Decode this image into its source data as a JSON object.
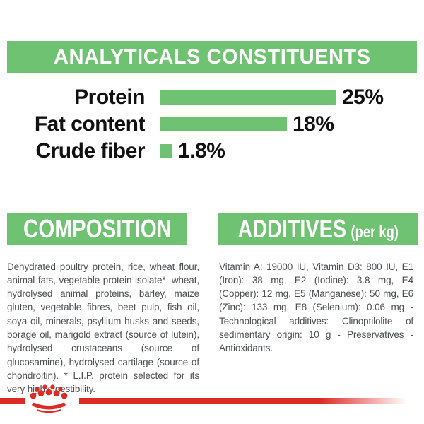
{
  "colors": {
    "green": "#6ec271",
    "red": "#dc2a25",
    "heading_text": "#ffffff",
    "label_text": "#111111",
    "body_text": "#4d4f51"
  },
  "banner": {
    "title": "ANALYTICALS CONSTITUENTS"
  },
  "analyticals": {
    "rows": [
      {
        "label": "Protein",
        "value": 25,
        "value_label": "25%"
      },
      {
        "label": "Fat content",
        "value": 18,
        "value_label": "18%"
      },
      {
        "label": "Crude fiber",
        "value": 1.8,
        "value_label": "1.8%"
      }
    ]
  },
  "chart_data": {
    "type": "bar",
    "orientation": "horizontal",
    "title": "ANALYTICALS CONSTITUENTS",
    "categories": [
      "Protein",
      "Fat content",
      "Crude fiber"
    ],
    "values": [
      25,
      18,
      1.8
    ],
    "value_labels": [
      "25%",
      "18%",
      "1.8%"
    ],
    "xlabel": "",
    "ylabel": "",
    "xlim": [
      0,
      25
    ],
    "grid": false,
    "legend": false,
    "bar_color": "#6ec271"
  },
  "composition": {
    "title": "COMPOSITION",
    "body": "Dehydrated poultry protein, rice, wheat flour, animal fats, vegetable protein isolate*, wheat, hydrolysed animal proteins, barley, maize gluten, vegetable fibres, beet pulp, fish oil, soya oil, minerals, psyllium husks and seeds, borage oil, marigold extract (source of lutein), hydrolysed crustaceans (source of glucosamine), hydrolysed cartilage (source of chondroitin). * L.I.P. protein selected for its very high digestibility."
  },
  "additives": {
    "title": "ADDITIVES",
    "unit_suffix": "(per kg)",
    "body": "Vitamin A: 19000 IU, Vitamin D3: 800 IU, E1 (Iron): 38 mg, E2 (Iodine): 3.8 mg, E4 (Copper): 12 mg, E5 (Manganese): 50 mg, E6 (Zinc): 133 mg, E8 (Selenium): 0.06 mg - Technological additives: Clinoptilolite of sedimentary origin: 10 g - Preservatives - Antioxidants.",
    "title_full": "ADDITIVES (per kg)"
  },
  "footer": {
    "logo": "royal-canin-crown"
  }
}
